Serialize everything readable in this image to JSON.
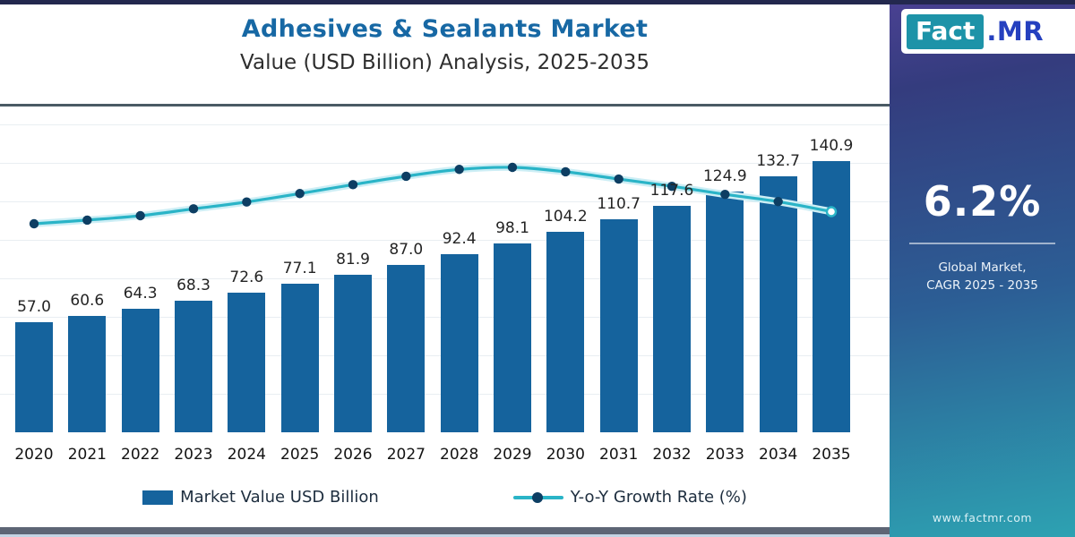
{
  "header": {
    "title": "Adhesives & Sealants Market",
    "subtitle": "Value (USD Billion) Analysis, 2025-2035"
  },
  "chart_data": {
    "type": "bar",
    "title": "Adhesives & Sealants Market",
    "subtitle": "Value (USD Billion) Analysis, 2025-2035",
    "categories": [
      "2020",
      "2021",
      "2022",
      "2023",
      "2024",
      "2025",
      "2026",
      "2027",
      "2028",
      "2029",
      "2030",
      "2031",
      "2032",
      "2033",
      "2034",
      "2035"
    ],
    "series": [
      {
        "name": "Market Value USD Billion",
        "type": "bar",
        "color": "#15639d",
        "values": [
          57.0,
          60.6,
          64.3,
          68.3,
          72.6,
          77.1,
          81.9,
          87.0,
          92.4,
          98.1,
          104.2,
          110.7,
          117.6,
          124.9,
          132.7,
          140.9
        ]
      },
      {
        "name": "Y-o-Y Growth Rate (%)",
        "type": "line",
        "color": "#2ab4c7",
        "marker_color": "#0d3e63",
        "labels_shown": false,
        "values_estimated": [
          5.6,
          5.69,
          5.8,
          5.97,
          6.14,
          6.35,
          6.57,
          6.78,
          6.95,
          7.0,
          6.89,
          6.71,
          6.53,
          6.33,
          6.15,
          5.9
        ]
      }
    ],
    "ylim": [
      0,
      170
    ],
    "grid": "horizontal",
    "gridline_step": 20,
    "legend_position": "bottom",
    "bar_labels": true,
    "bar_label_format": "one-decimal"
  },
  "side_panel": {
    "logo_fact": "Fact",
    "logo_mr": ".MR",
    "cagr_value": "6.2%",
    "caption_line1": "Global Market,",
    "caption_line2": "CAGR 2025 - 2035",
    "website": "www.factmr.com",
    "gradient_top": "#4a4192",
    "gradient_bottom": "#2da2b2"
  },
  "colors": {
    "title": "#1768a4",
    "bar": "#15639d",
    "line": "#2ab4c7",
    "line_marker": "#0d3e63",
    "top_bar": "#23284e",
    "bottom_bar": "#5d6575",
    "header_divider": "#4a5a64"
  }
}
